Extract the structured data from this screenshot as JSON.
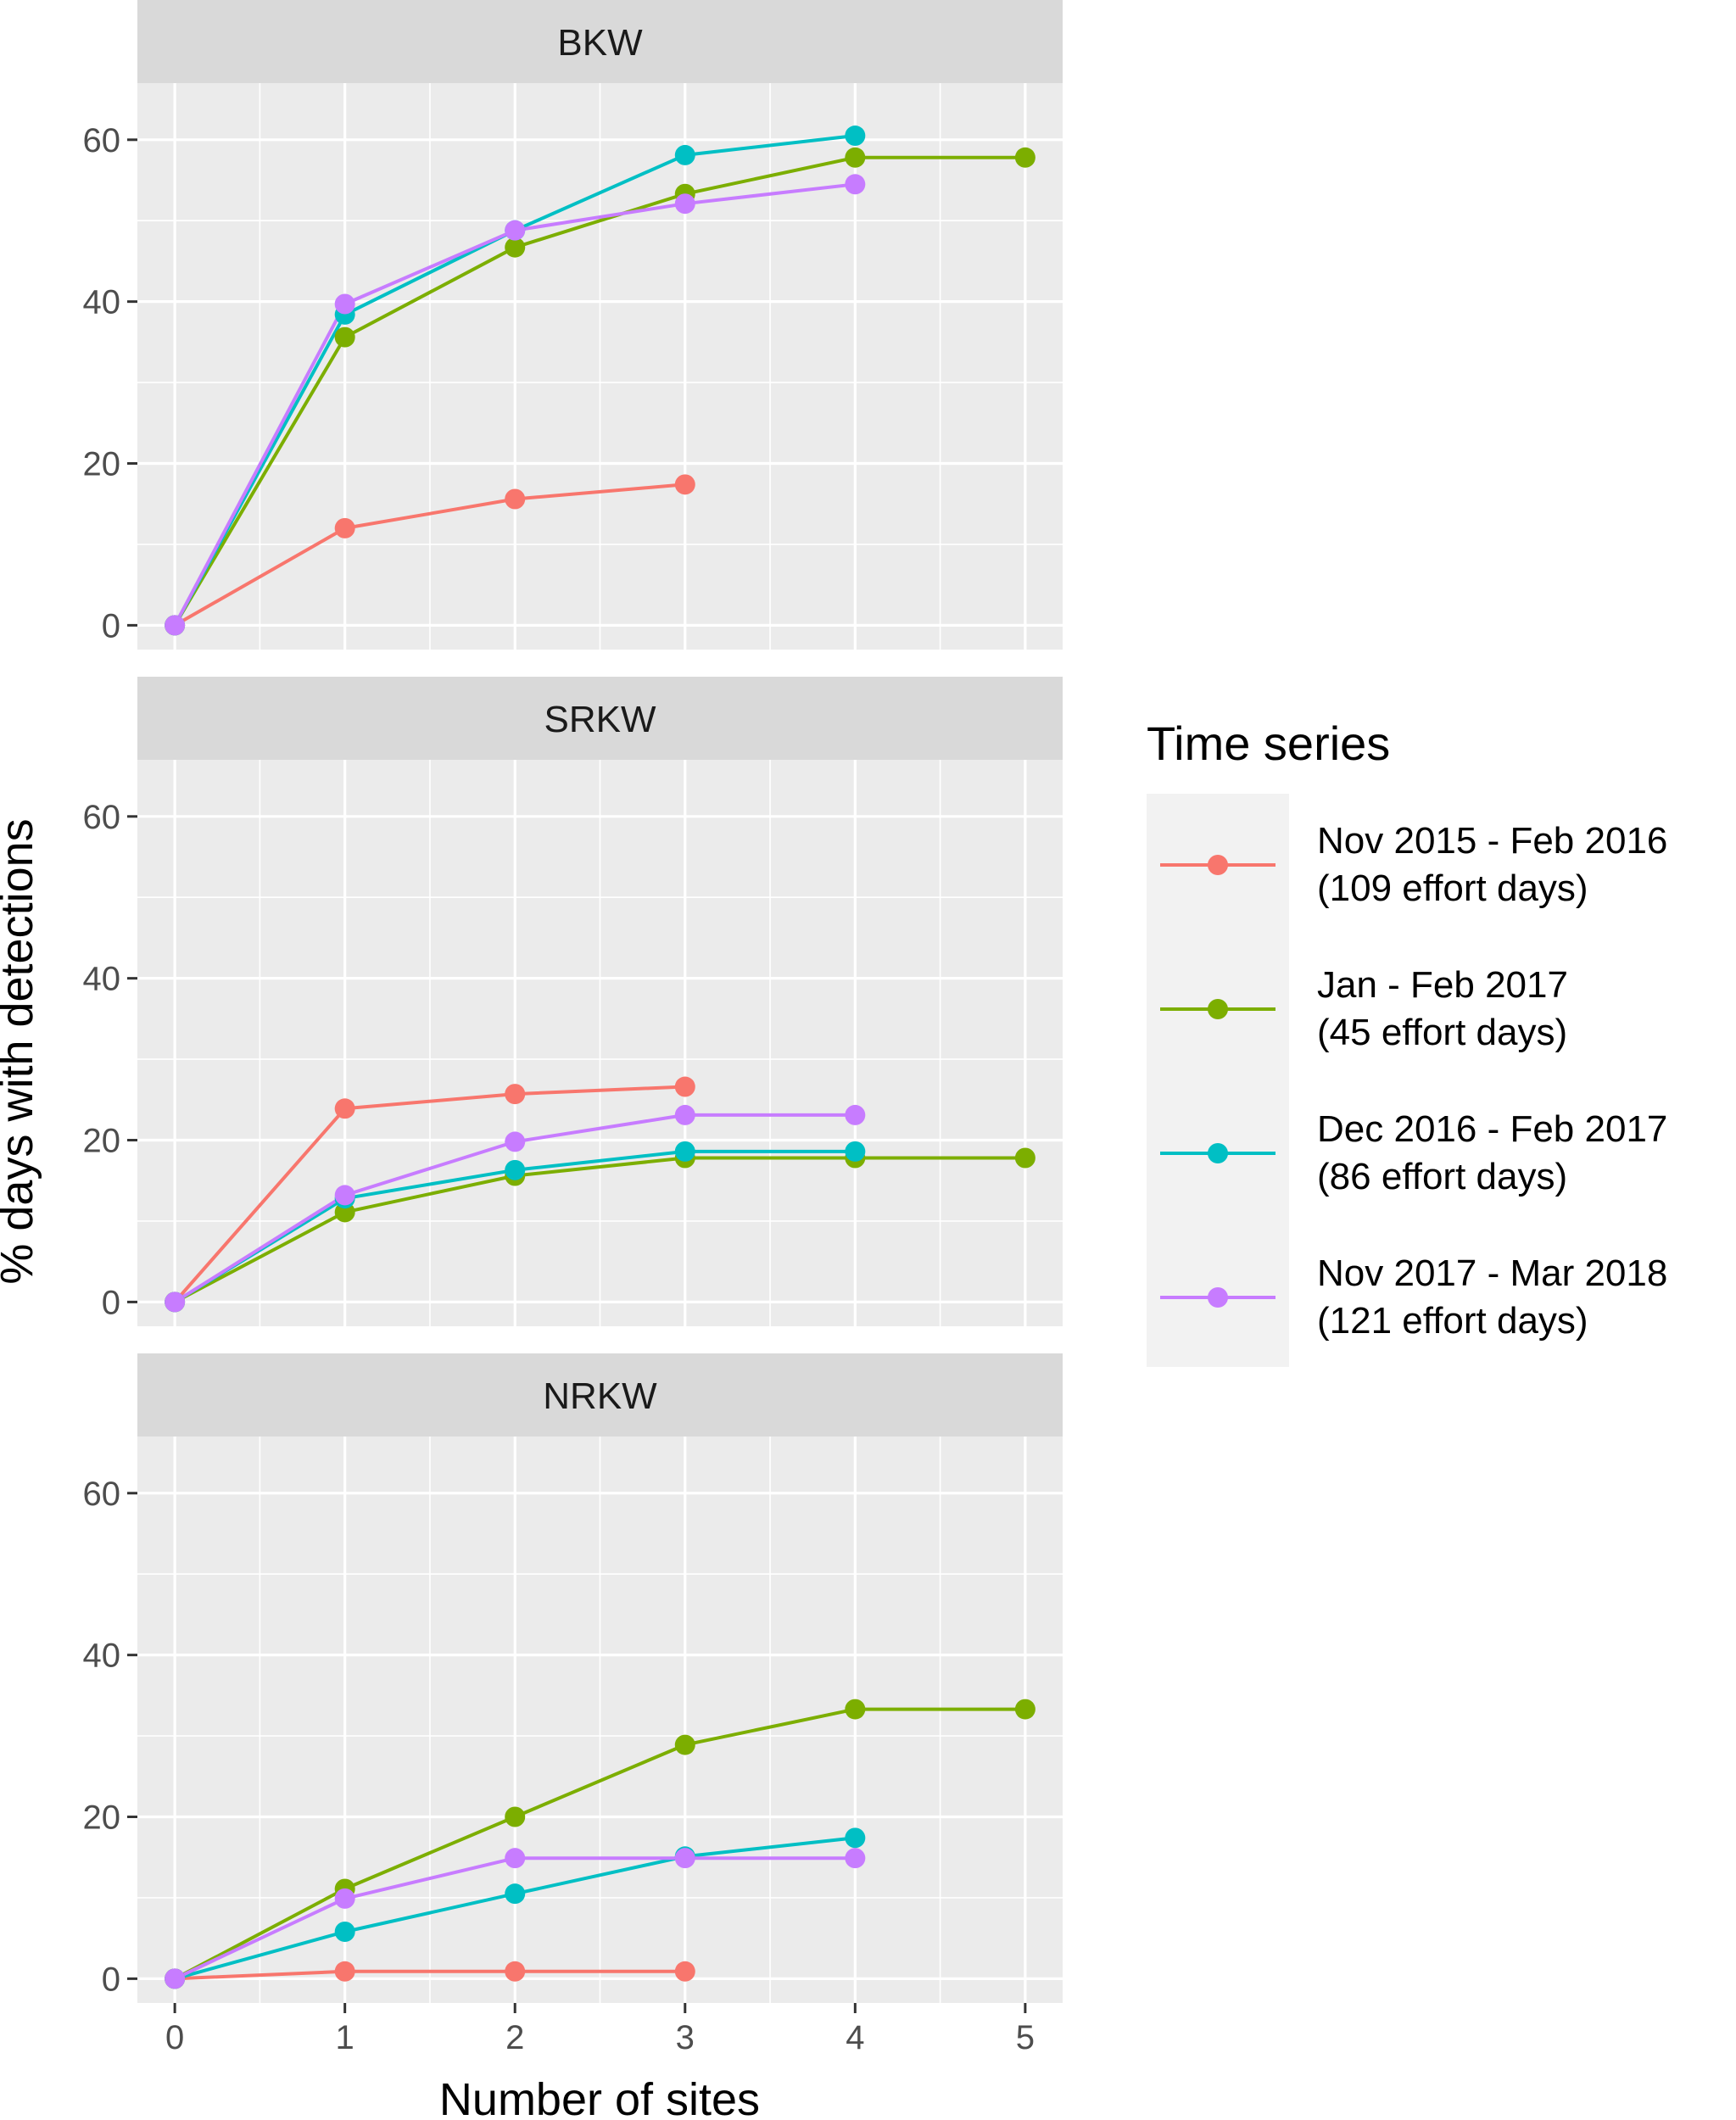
{
  "chart_data": {
    "type": "line",
    "xlabel": "Number of sites",
    "ylabel": "% days with detections",
    "xlim": [
      -0.22,
      5.22
    ],
    "ylim": [
      -3,
      67
    ],
    "x_ticks": [
      0,
      1,
      2,
      3,
      4,
      5
    ],
    "y_ticks": [
      0,
      20,
      40,
      60
    ],
    "grid": true,
    "legend": {
      "title": "Time series",
      "position": "right",
      "entries": [
        {
          "key": "s1",
          "line1": "Nov 2015 - Feb 2016",
          "line2": "(109 effort days)",
          "color": "#F8766D"
        },
        {
          "key": "s2",
          "line1": "Jan - Feb 2017",
          "line2": "(45 effort days)",
          "color": "#7CAE00"
        },
        {
          "key": "s3",
          "line1": "Dec 2016 - Feb 2017",
          "line2": "(86 effort days)",
          "color": "#00BFC4"
        },
        {
          "key": "s4",
          "line1": "Nov 2017 - Mar 2018",
          "line2": "(121 effort days)",
          "color": "#C77CFF"
        }
      ]
    },
    "panels": [
      {
        "title": "BKW",
        "series": [
          {
            "key": "s1",
            "x": [
              0,
              1,
              2,
              3
            ],
            "y": [
              0,
              12,
              15.6,
              17.4
            ]
          },
          {
            "key": "s2",
            "x": [
              0,
              1,
              2,
              3,
              4,
              5
            ],
            "y": [
              0,
              35.6,
              46.7,
              53.3,
              57.8,
              57.8
            ]
          },
          {
            "key": "s3",
            "x": [
              0,
              1,
              2,
              3,
              4
            ],
            "y": [
              0,
              38.4,
              48.8,
              58.1,
              60.5
            ]
          },
          {
            "key": "s4",
            "x": [
              0,
              1,
              2,
              3,
              4
            ],
            "y": [
              0,
              39.7,
              48.8,
              52.1,
              54.5
            ]
          }
        ]
      },
      {
        "title": "SRKW",
        "series": [
          {
            "key": "s1",
            "x": [
              0,
              1,
              2,
              3
            ],
            "y": [
              0,
              23.9,
              25.7,
              26.6
            ]
          },
          {
            "key": "s2",
            "x": [
              0,
              1,
              2,
              3,
              4,
              5
            ],
            "y": [
              0,
              11.1,
              15.6,
              17.8,
              17.8,
              17.8
            ]
          },
          {
            "key": "s3",
            "x": [
              0,
              1,
              2,
              3,
              4
            ],
            "y": [
              0,
              12.8,
              16.3,
              18.6,
              18.6
            ]
          },
          {
            "key": "s4",
            "x": [
              0,
              1,
              2,
              3,
              4
            ],
            "y": [
              0,
              13.2,
              19.8,
              23.1,
              23.1
            ]
          }
        ]
      },
      {
        "title": "NRKW",
        "series": [
          {
            "key": "s1",
            "x": [
              0,
              1,
              2,
              3
            ],
            "y": [
              0,
              0.9,
              0.9,
              0.9
            ]
          },
          {
            "key": "s2",
            "x": [
              0,
              1,
              2,
              3,
              4,
              5
            ],
            "y": [
              0,
              11.1,
              20,
              28.9,
              33.3,
              33.3
            ]
          },
          {
            "key": "s3",
            "x": [
              0,
              1,
              2,
              3,
              4
            ],
            "y": [
              0,
              5.8,
              10.5,
              15.1,
              17.4
            ]
          },
          {
            "key": "s4",
            "x": [
              0,
              1,
              2,
              3,
              4
            ],
            "y": [
              0,
              9.9,
              14.9,
              14.9,
              14.9
            ]
          }
        ]
      }
    ]
  }
}
